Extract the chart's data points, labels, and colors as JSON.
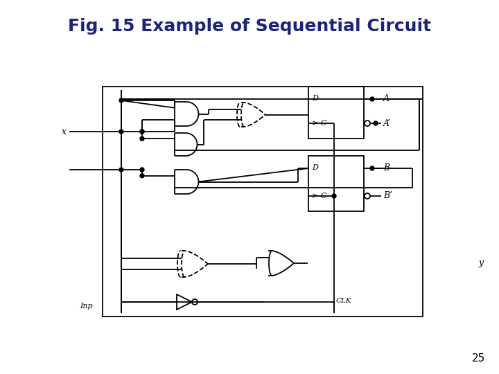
{
  "title": "Fig. 15 Example of Sequential Circuit",
  "title_color": "#1a237e",
  "title_fontsize": 18,
  "bg_color": "#ffffff",
  "line_color": "#000000",
  "page_number": "25",
  "label_x": "x",
  "label_inp": "Inp",
  "label_A": "A",
  "label_Ap": "A’",
  "label_B": "B",
  "label_Bp": "B’",
  "label_y": "y",
  "label_CLK": "CLK",
  "label_D": "D",
  "label_C": "> C"
}
